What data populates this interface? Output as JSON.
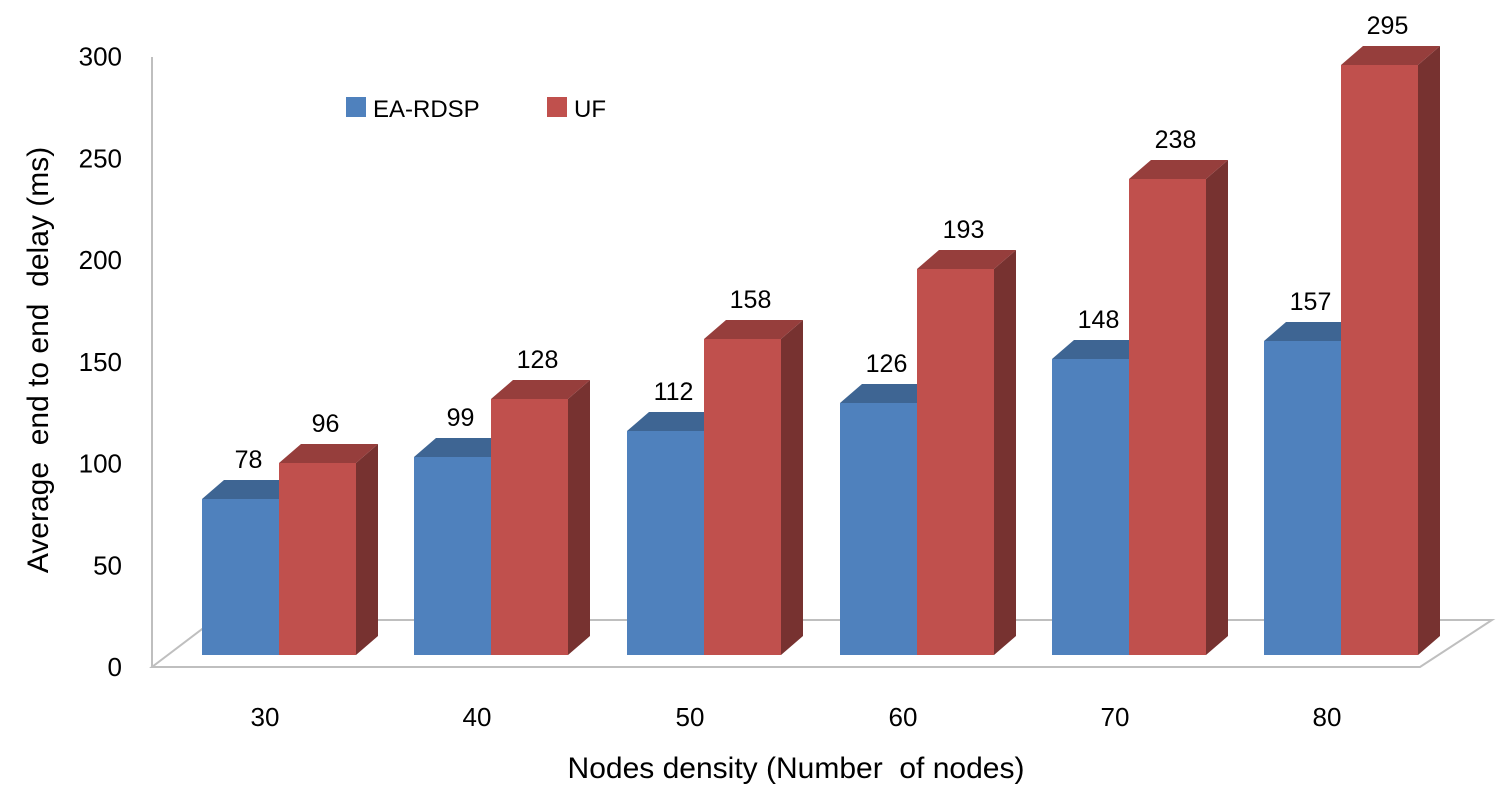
{
  "chart_data": {
    "type": "bar",
    "title": "",
    "xlabel": "Nodes density (Number  of nodes)",
    "ylabel": "Average  end to end  delay (ms)",
    "categories": [
      "30",
      "40",
      "50",
      "60",
      "70",
      "80"
    ],
    "series": [
      {
        "name": "EA-RDSP",
        "values": [
          78,
          99,
          112,
          126,
          148,
          157
        ],
        "color": "#4F81BD"
      },
      {
        "name": "UF",
        "values": [
          96,
          128,
          158,
          193,
          238,
          295
        ],
        "color": "#C0504D"
      }
    ],
    "ylim": [
      0,
      300
    ],
    "yticks": [
      "0",
      "50",
      "100",
      "150",
      "200",
      "250",
      "300"
    ],
    "legend_position": "top-left",
    "grid": false,
    "style": "3d-clustered-column"
  }
}
